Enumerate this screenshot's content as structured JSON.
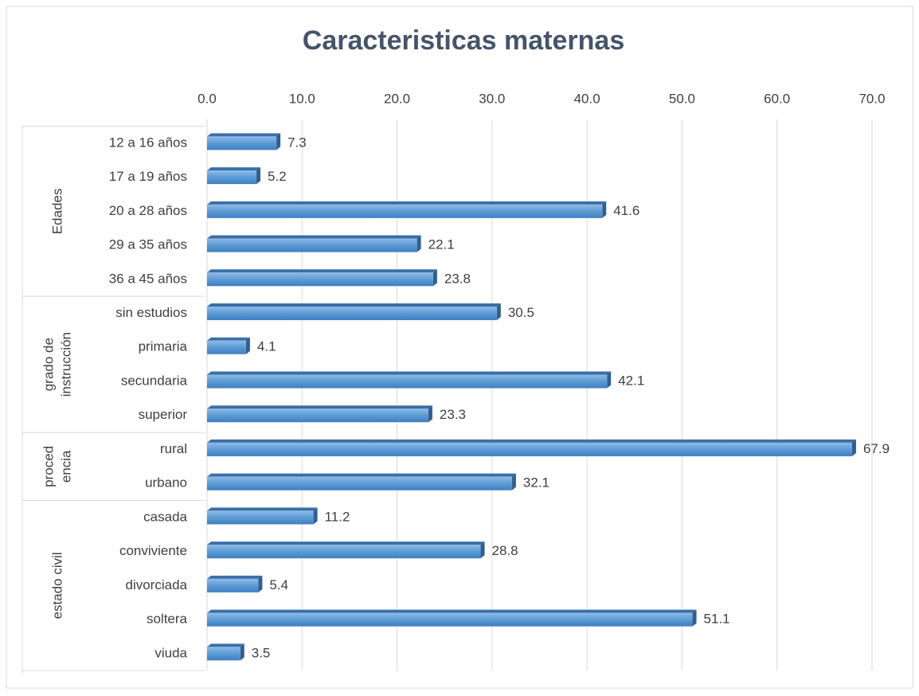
{
  "chart_data": {
    "type": "bar",
    "orientation": "horizontal",
    "title": "Caracteristicas maternas",
    "categories": [
      "12 a 16 años",
      "17 a 19 años",
      "20 a 28 años",
      "29 a 35 años",
      "36 a 45 años",
      "sin estudios",
      "primaria",
      "secundaria",
      "superior",
      "rural",
      "urbano",
      "casada",
      "conviviente",
      "divorciada",
      "soltera",
      "viuda"
    ],
    "groups": [
      {
        "label_lines": [
          "Edades"
        ],
        "size": 5
      },
      {
        "label_lines": [
          "grado de",
          "instrucción"
        ],
        "size": 4
      },
      {
        "label_lines": [
          "proced",
          "encia"
        ],
        "size": 2
      },
      {
        "label_lines": [
          "estado civil"
        ],
        "size": 5
      }
    ],
    "values": [
      7.3,
      5.2,
      41.6,
      22.1,
      23.8,
      30.5,
      4.1,
      42.1,
      23.3,
      67.9,
      32.1,
      11.2,
      28.8,
      5.4,
      51.1,
      3.5
    ],
    "color": "#5b9bd5",
    "xlim": [
      0,
      70
    ],
    "xticks": [
      {
        "value": 0,
        "label": "0.0"
      },
      {
        "value": 10,
        "label": "10.0"
      },
      {
        "value": 20,
        "label": "20.0"
      },
      {
        "value": 30,
        "label": "30.0"
      },
      {
        "value": 40,
        "label": "40.0"
      },
      {
        "value": 50,
        "label": "50.0"
      },
      {
        "value": 60,
        "label": "60.0"
      },
      {
        "value": 70,
        "label": "70.0"
      }
    ],
    "grid": true
  }
}
